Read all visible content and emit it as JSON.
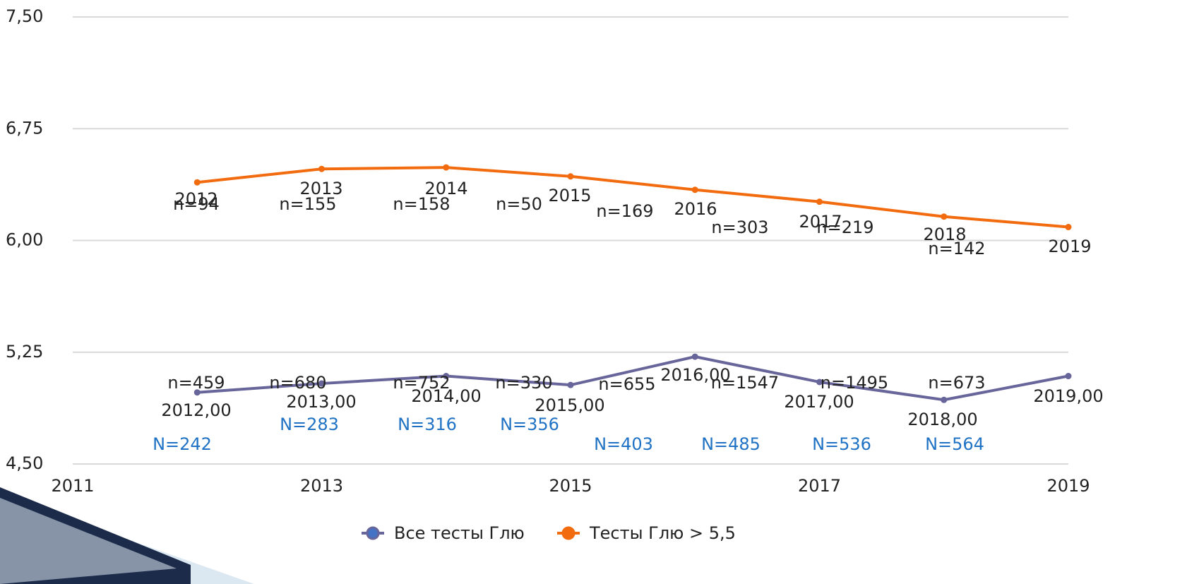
{
  "chart_data": {
    "type": "line",
    "x": [
      2012,
      2013,
      2014,
      2015,
      2016,
      2017,
      2018,
      2019
    ],
    "series": [
      {
        "name": "Все тесты Глю",
        "color": "#67659a",
        "marker_fill": "#4472c4",
        "values": [
          4.98,
          5.04,
          5.09,
          5.03,
          5.22,
          5.05,
          4.93,
          5.09
        ],
        "x_labels": [
          "2012,00",
          "2013,00",
          "2014,00",
          "2015,00",
          "2016,00",
          "2017,00",
          "2018,00",
          "2019,00"
        ]
      },
      {
        "name": "Тесты Глю > 5,5",
        "color": "#f26b0f",
        "marker_fill": "#f26b0f",
        "values": [
          6.39,
          6.48,
          6.49,
          6.43,
          6.34,
          6.26,
          6.16,
          6.09
        ]
      }
    ],
    "annotations": {
      "upper_n": [
        "n=94",
        "n=155",
        "n=158",
        "n=50",
        "n=169",
        "n=303",
        "n=219",
        "n=142"
      ],
      "lower_n": [
        "n=459",
        "n=680",
        "n=752",
        "n=330",
        "n=655",
        "n=1547",
        "n=1495",
        "n=673"
      ],
      "total_n": [
        "N=242",
        "N=283",
        "N=316",
        "N=356",
        "N=403",
        "N=485",
        "N=536",
        "N=564"
      ]
    },
    "xlim": [
      2011,
      2019
    ],
    "xticks": [
      2011,
      2013,
      2015,
      2017,
      2019
    ],
    "ylim": [
      4.5,
      7.5
    ],
    "yticks": [
      {
        "value": 4.5,
        "label": "4,50"
      },
      {
        "value": 5.25,
        "label": "5,25"
      },
      {
        "value": 6.0,
        "label": "6,00"
      },
      {
        "value": 6.75,
        "label": "6,75"
      },
      {
        "value": 7.5,
        "label": "7,50"
      }
    ],
    "grid": true
  }
}
